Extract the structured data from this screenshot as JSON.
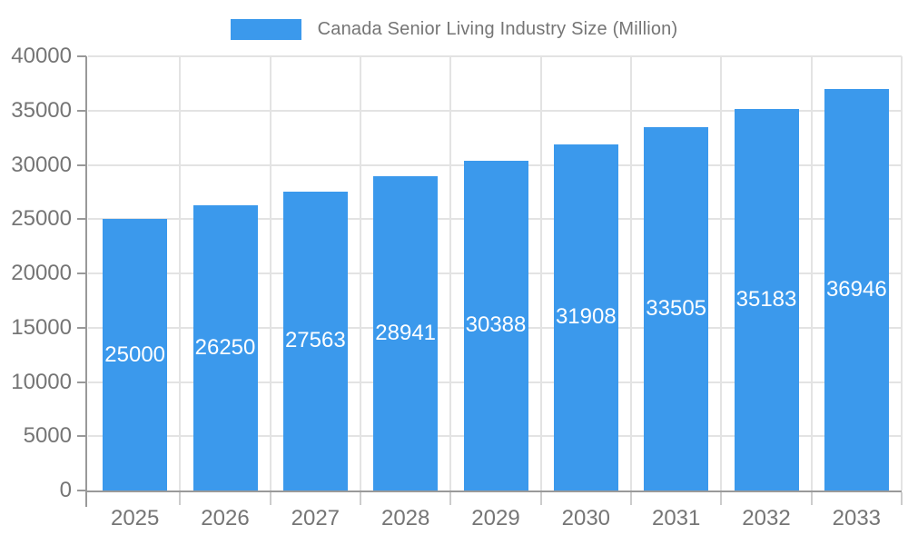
{
  "legend": {
    "label": "Canada Senior Living Industry Size (Million)"
  },
  "chart_data": {
    "type": "bar",
    "title": "Canada Senior Living Industry Size (Million)",
    "categories": [
      "2025",
      "2026",
      "2027",
      "2028",
      "2029",
      "2030",
      "2031",
      "2032",
      "2033"
    ],
    "series": [
      {
        "name": "Canada Senior Living Industry Size (Million)",
        "values": [
          25000,
          26250,
          27563,
          28941,
          30388,
          31908,
          33505,
          35183,
          36946
        ]
      }
    ],
    "xlabel": "",
    "ylabel": "",
    "ylim": [
      0,
      40000
    ],
    "ytick_step": 5000,
    "ytick_labels": [
      "0",
      "5000",
      "10000",
      "15000",
      "20000",
      "25000",
      "30000",
      "35000",
      "40000"
    ],
    "grid": "on",
    "legend_position": "top-center",
    "bar_labels_inside": true
  },
  "colors": {
    "bar": "#3b99ec",
    "axis": "#999999",
    "grid": "#e3e3e3",
    "minor_tick": "#cccccc",
    "text": "#757575",
    "bar_label": "#ffffff",
    "background": "#ffffff"
  }
}
